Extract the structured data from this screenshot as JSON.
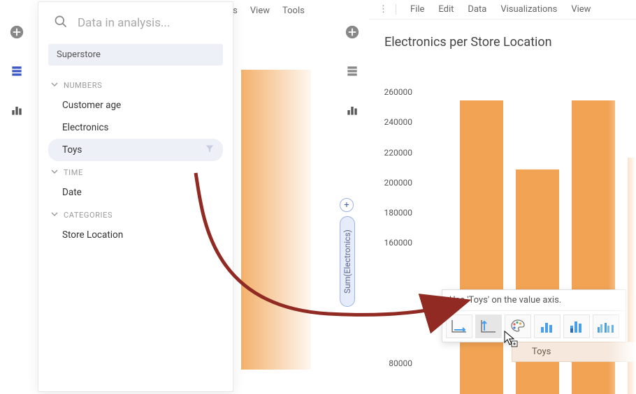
{
  "left": {
    "menu": {
      "item1": "ns",
      "item2": "View",
      "item3": "Tools"
    },
    "search_placeholder": "Data in analysis...",
    "data_source": "Superstore",
    "groups": {
      "numbers": {
        "label": "NUMBERS",
        "items": [
          "Customer age",
          "Electronics",
          "Toys"
        ]
      },
      "time": {
        "label": "TIME",
        "items": [
          "Date"
        ]
      },
      "categories": {
        "label": "CATEGORIES",
        "items": [
          "Store Location"
        ]
      }
    }
  },
  "right": {
    "menu": {
      "file": "File",
      "edit": "Edit",
      "data": "Data",
      "vis": "Visualizations",
      "view": "View"
    },
    "chart": {
      "title": "Electronics per Store Location",
      "y_axis_label": "Sum(Electronics)",
      "y_ticks": [
        "260000",
        "240000",
        "220000",
        "200000",
        "180000",
        "160000",
        "80000"
      ],
      "y_tick_values": [
        260000,
        240000,
        220000,
        200000,
        180000,
        160000,
        80000
      ],
      "y_max": 280000,
      "y_min": 60000,
      "bar_values": [
        255000,
        209000,
        255000,
        217000
      ],
      "bar_color": "#f2a454"
    },
    "drop": {
      "tip": "Use 'Toys' on the value axis.",
      "drag_label": "Toys"
    }
  },
  "colors": {
    "accent_blue": "#3b57c4",
    "bar": "#f2a454",
    "arrow": "#902a22",
    "pill_border": "#9bb4e6",
    "pill_bg": "#e6ecf9"
  }
}
